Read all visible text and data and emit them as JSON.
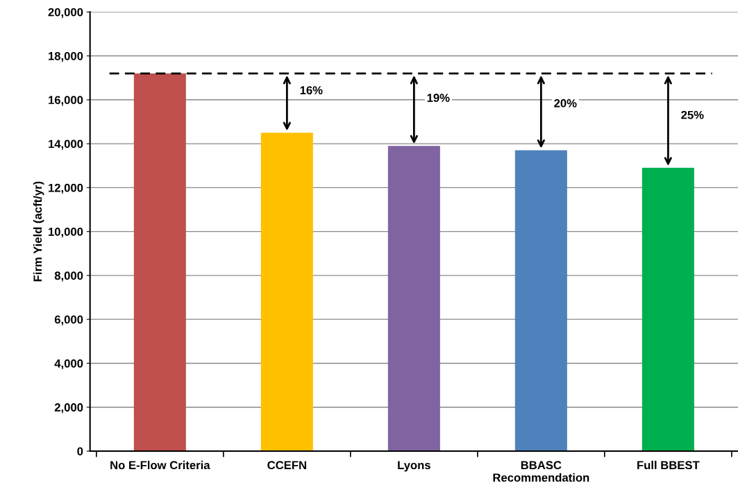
{
  "chart_data": {
    "type": "bar",
    "ylabel": "Firm Yield (acft/yr)",
    "categories": [
      "No E-Flow Criteria",
      "CCEFN",
      "Lyons",
      "BBASC\nRecommendation",
      "Full BBEST"
    ],
    "values": [
      17200,
      14500,
      13900,
      13700,
      12900
    ],
    "colors": [
      "#c0504d",
      "#ffc000",
      "#8064a2",
      "#4f81bd",
      "#00b050"
    ],
    "ylim": [
      0,
      20000
    ],
    "yticks": [
      {
        "value": 0,
        "label": "0"
      },
      {
        "value": 2000,
        "label": "2,000"
      },
      {
        "value": 4000,
        "label": "4,000"
      },
      {
        "value": 6000,
        "label": "6,000"
      },
      {
        "value": 8000,
        "label": "8,000"
      },
      {
        "value": 10000,
        "label": "10,000"
      },
      {
        "value": 12000,
        "label": "12,000"
      },
      {
        "value": 14000,
        "label": "14,000"
      },
      {
        "value": 16000,
        "label": "16,000"
      },
      {
        "value": 18000,
        "label": "18,000"
      },
      {
        "value": 20000,
        "label": "20,000"
      }
    ],
    "grid": "y",
    "legend": false,
    "ref_lines": [
      {
        "axis": "y",
        "value": 17200,
        "color": "#000000",
        "line_style": "dashed"
      }
    ],
    "annotations": [
      "16%",
      "19%",
      "20%",
      "25%"
    ]
  }
}
